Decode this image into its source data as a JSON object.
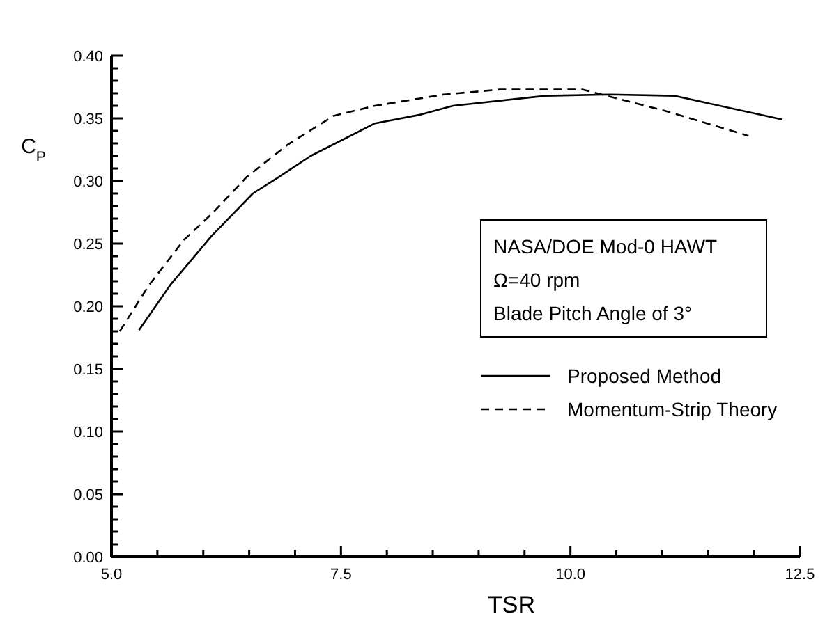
{
  "chart_data": {
    "type": "line",
    "xlabel": "TSR",
    "ylabel": "C$_{P}$",
    "xlim": [
      5.0,
      12.5
    ],
    "ylim": [
      0,
      0.4
    ],
    "xticks": [
      {
        "value": 5.0,
        "label": "5.0"
      },
      {
        "value": 5.5,
        "label": null
      },
      {
        "value": 6.0,
        "label": null
      },
      {
        "value": 6.5,
        "label": null
      },
      {
        "value": 7.0,
        "label": null
      },
      {
        "value": 7.5,
        "label": "7.5"
      },
      {
        "value": 8.0,
        "label": null
      },
      {
        "value": 8.5,
        "label": null
      },
      {
        "value": 9.0,
        "label": null
      },
      {
        "value": 9.5,
        "label": null
      },
      {
        "value": 10.0,
        "label": "10.0"
      },
      {
        "value": 10.5,
        "label": null
      },
      {
        "value": 11.0,
        "label": null
      },
      {
        "value": 11.5,
        "label": null
      },
      {
        "value": 12.0,
        "label": null
      },
      {
        "value": 12.5,
        "label": "12.5"
      }
    ],
    "yticks": [
      {
        "value": 0,
        "label": "0.00"
      },
      {
        "value": 0.01,
        "label": null
      },
      {
        "value": 0.02,
        "label": null
      },
      {
        "value": 0.03,
        "label": null
      },
      {
        "value": 0.04,
        "label": null
      },
      {
        "value": 0.05,
        "label": "0.05"
      },
      {
        "value": 0.06,
        "label": null
      },
      {
        "value": 0.07,
        "label": null
      },
      {
        "value": 0.08,
        "label": null
      },
      {
        "value": 0.09,
        "label": null
      },
      {
        "value": 0.1,
        "label": "0.10"
      },
      {
        "value": 0.11,
        "label": null
      },
      {
        "value": 0.12,
        "label": null
      },
      {
        "value": 0.13,
        "label": null
      },
      {
        "value": 0.14,
        "label": null
      },
      {
        "value": 0.15,
        "label": "0.15"
      },
      {
        "value": 0.16,
        "label": null
      },
      {
        "value": 0.17,
        "label": null
      },
      {
        "value": 0.18,
        "label": null
      },
      {
        "value": 0.19,
        "label": null
      },
      {
        "value": 0.2,
        "label": "0.20"
      },
      {
        "value": 0.21,
        "label": null
      },
      {
        "value": 0.22,
        "label": null
      },
      {
        "value": 0.23,
        "label": null
      },
      {
        "value": 0.24,
        "label": null
      },
      {
        "value": 0.25,
        "label": "0.25"
      },
      {
        "value": 0.26,
        "label": null
      },
      {
        "value": 0.27,
        "label": null
      },
      {
        "value": 0.28,
        "label": null
      },
      {
        "value": 0.29,
        "label": null
      },
      {
        "value": 0.3,
        "label": "0.30"
      },
      {
        "value": 0.31,
        "label": null
      },
      {
        "value": 0.32,
        "label": null
      },
      {
        "value": 0.33,
        "label": null
      },
      {
        "value": 0.34,
        "label": null
      },
      {
        "value": 0.35,
        "label": "0.35"
      },
      {
        "value": 0.36,
        "label": null
      },
      {
        "value": 0.37,
        "label": null
      },
      {
        "value": 0.38,
        "label": null
      },
      {
        "value": 0.39,
        "label": null
      },
      {
        "value": 0.4,
        "label": "0.40"
      }
    ],
    "grid": false,
    "legend": "right",
    "marker": "none",
    "annotations": [
      "NASA/DOE Mod-0 HAWT",
      "Ω=40 rpm",
      "Blade Pitch Angle of 3°"
    ],
    "series": [
      {
        "name": "Proposed Method",
        "color": "#000000",
        "line_style": "solid",
        "x": [
          5.3,
          5.64,
          6.09,
          6.54,
          6.82,
          7.17,
          7.87,
          8.37,
          8.72,
          9.73,
          10.43,
          11.13,
          12.31
        ],
        "values": [
          0.181,
          0.217,
          0.256,
          0.29,
          0.303,
          0.32,
          0.346,
          0.353,
          0.36,
          0.368,
          0.369,
          0.368,
          0.349
        ]
      },
      {
        "name": "Momentum-Strip Theory",
        "color": "#000000",
        "line_style": "dashed",
        "x": [
          5.09,
          5.41,
          5.79,
          6.11,
          6.47,
          6.92,
          7.42,
          7.87,
          8.62,
          9.23,
          10.13,
          11.03,
          11.94
        ],
        "values": [
          0.18,
          0.217,
          0.253,
          0.275,
          0.303,
          0.329,
          0.352,
          0.36,
          0.369,
          0.373,
          0.373,
          0.356,
          0.336
        ]
      }
    ]
  }
}
